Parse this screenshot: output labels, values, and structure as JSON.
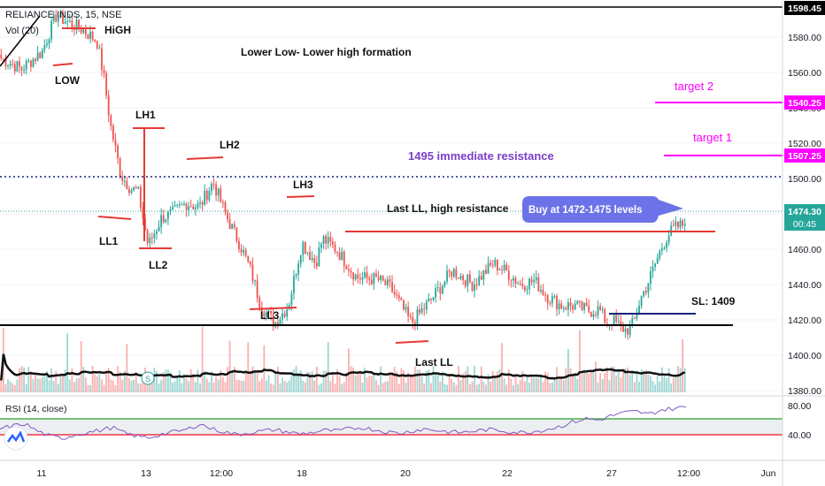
{
  "header": {
    "symbol_line": "RELIANCE INDS, 15, NSE",
    "volume_line": "Vol (20)",
    "rsi_line": "RSI (14, close)"
  },
  "price_axis": {
    "ticks": [
      "1580.00",
      "1560.00",
      "1540.00",
      "1520.00",
      "1500.00",
      "1480.00",
      "1460.00",
      "1440.00",
      "1420.00",
      "1400.00",
      "1380.00"
    ],
    "badges": {
      "top": "1598.45",
      "target2": "1540.25",
      "target1": "1507.25",
      "last": "1474.30",
      "countdown": "00:45"
    }
  },
  "rsi_axis": {
    "ticks": [
      "80.00",
      "40.00"
    ]
  },
  "time_axis": {
    "ticks": [
      "11",
      "13",
      "12:00",
      "18",
      "20",
      "22",
      "27",
      "12:00",
      "Jun"
    ]
  },
  "annotations": {
    "title": "Lower Low- Lower high formation",
    "high": "HiGH",
    "low": "LOW",
    "lh1": "LH1",
    "lh2": "LH2",
    "lh3": "LH3",
    "ll1": "LL1",
    "ll2": "LL2",
    "ll3": "LL3",
    "last_ll": "Last LL",
    "last_ll_res": "Last LL, high resistance",
    "resistance": "1495 immediate resistance",
    "buy": "Buy at 1472-1475  levels",
    "sl": "SL: 1409",
    "target1": "target 1",
    "target2": "target 2"
  },
  "colors": {
    "up": "#26a69a",
    "down": "#ef5350",
    "magenta": "#ff00ff",
    "resistance_text": "#7b3fc7",
    "dotted_blue": "#1a237e",
    "buy_bubble": "#6c73e8",
    "rsi_line": "#7e57c2",
    "rsi_upper": "#4caf50",
    "rsi_lower": "#f23645"
  },
  "chart_data": {
    "type": "candlestick",
    "symbol": "RELIANCE INDS",
    "interval": "15",
    "exchange": "NSE",
    "x_ticks": [
      "11",
      "13",
      "12:00",
      "18",
      "20",
      "22",
      "27",
      "12:00",
      "Jun"
    ],
    "ylim": [
      1370,
      1600
    ],
    "y_ticks": [
      1380,
      1400,
      1420,
      1440,
      1460,
      1480,
      1500,
      1520,
      1540,
      1560,
      1580
    ],
    "close_path": {
      "x_frac": [
        0.0,
        0.03,
        0.06,
        0.08,
        0.1,
        0.12,
        0.14,
        0.15,
        0.16,
        0.175,
        0.19,
        0.2,
        0.215,
        0.235,
        0.25,
        0.27,
        0.29,
        0.31,
        0.33,
        0.35,
        0.365,
        0.38,
        0.4,
        0.42,
        0.44,
        0.46,
        0.47,
        0.49,
        0.52,
        0.55,
        0.57,
        0.6,
        0.63,
        0.66,
        0.69,
        0.72,
        0.74,
        0.76,
        0.78,
        0.8,
        0.82,
        0.84,
        0.86,
        0.875,
        0.885,
        0.895,
        0.905,
        0.915,
        0.925,
        0.935,
        0.945,
        0.955,
        0.965,
        0.975,
        0.985,
        1.0
      ],
      "close": [
        1568,
        1562,
        1572,
        1592,
        1588,
        1584,
        1578,
        1558,
        1530,
        1502,
        1494,
        1493,
        1462,
        1478,
        1480,
        1486,
        1484,
        1498,
        1478,
        1462,
        1448,
        1428,
        1418,
        1428,
        1464,
        1452,
        1466,
        1460,
        1444,
        1443,
        1438,
        1418,
        1432,
        1448,
        1440,
        1452,
        1447,
        1440,
        1442,
        1433,
        1428,
        1428,
        1425,
        1426,
        1418,
        1420,
        1416,
        1414,
        1418,
        1432,
        1440,
        1450,
        1460,
        1468,
        1472,
        1474.3
      ]
    },
    "levels": {
      "current_price": 1474.3,
      "immediate_resistance": 1495,
      "last_ll_resistance": 1461,
      "target_1": 1507.25,
      "target_2": 1540.25,
      "stop_loss": 1409,
      "support_line": 1406,
      "high_marker": 1598.45
    },
    "rsi": {
      "period": 14,
      "source": "close",
      "upper": 70,
      "lower": 30,
      "values": [
        48,
        52,
        55,
        45,
        38,
        35,
        40,
        43,
        46,
        50,
        42,
        38,
        36,
        41,
        44,
        47,
        55,
        48,
        44,
        40,
        43,
        45,
        47,
        44,
        41,
        43,
        46,
        45,
        48,
        50,
        47,
        44,
        42,
        45,
        48,
        46,
        44,
        43,
        45,
        47,
        46,
        44,
        43,
        45,
        48,
        52,
        58,
        62,
        60,
        66,
        70,
        72,
        68,
        74,
        76,
        78
      ]
    },
    "volume": {
      "ma_period": 20
    }
  }
}
